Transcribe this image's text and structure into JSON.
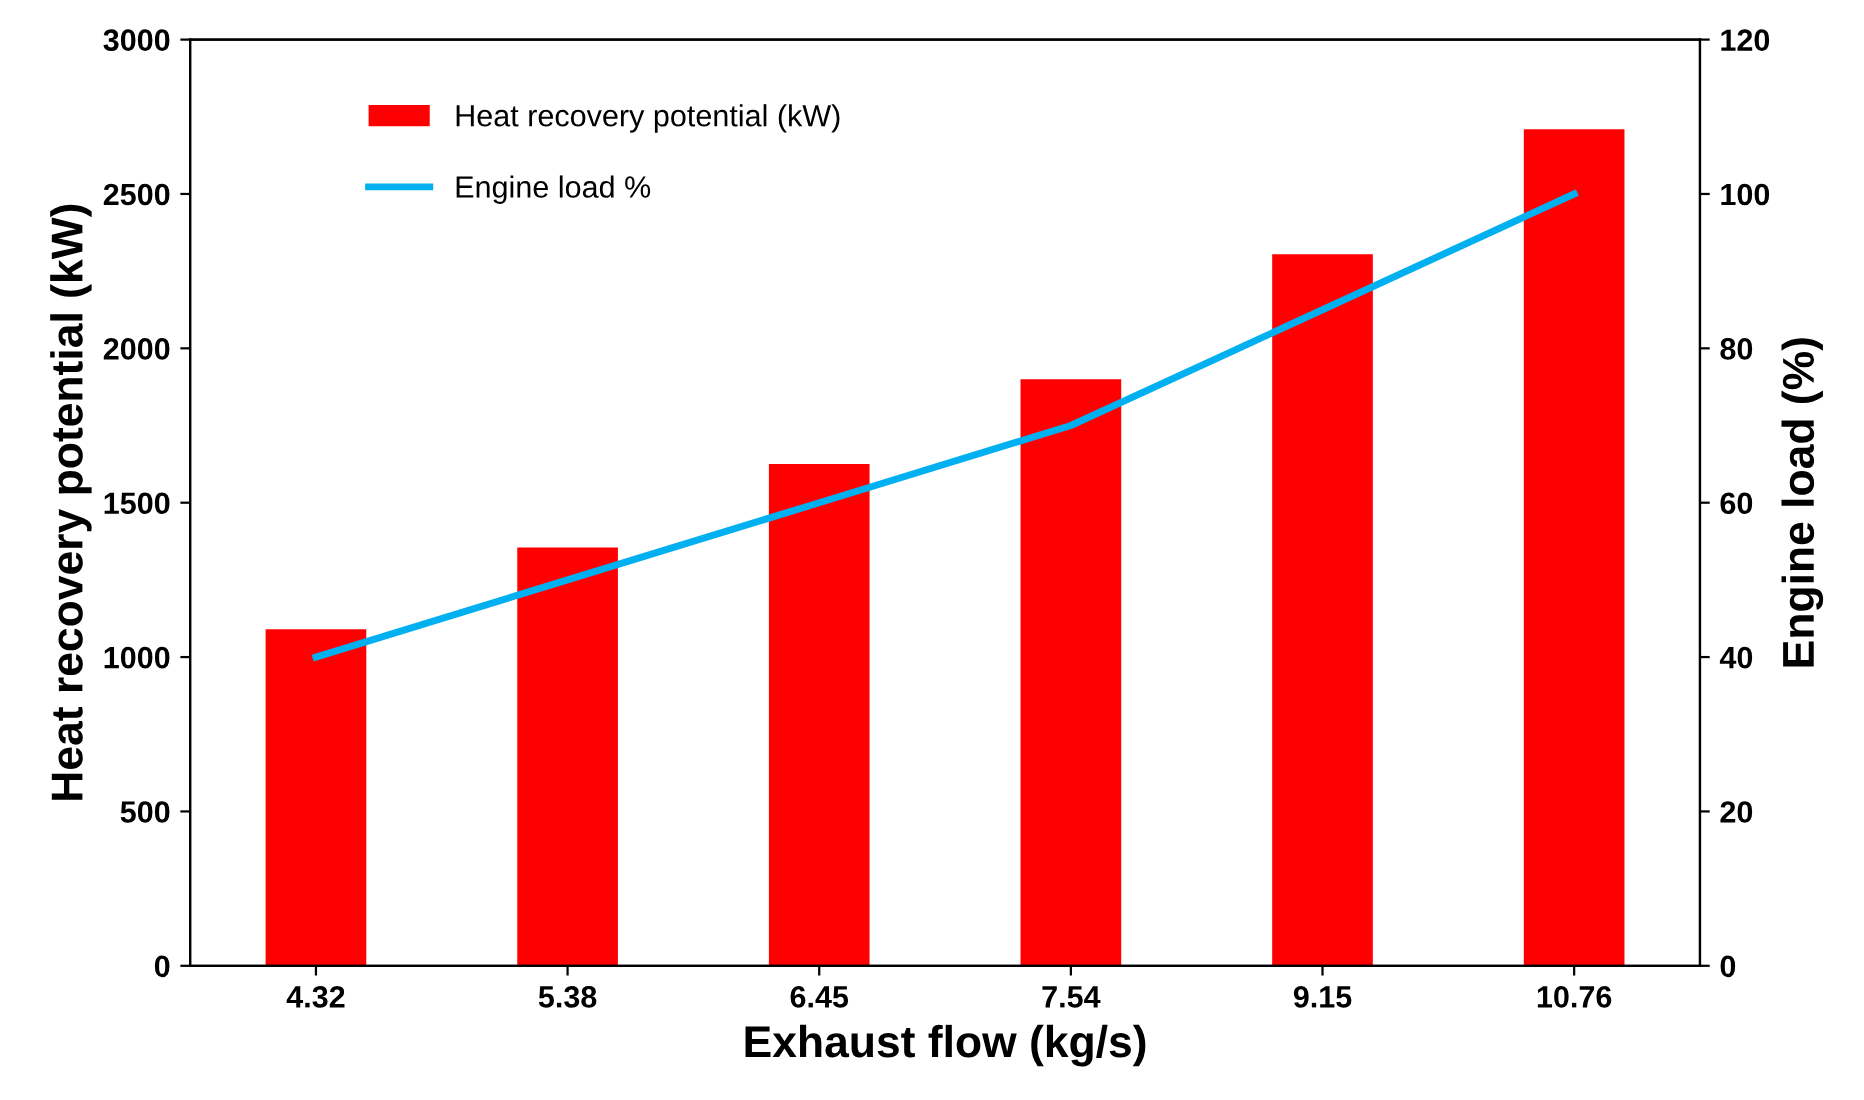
{
  "chart_data": {
    "type": "bar",
    "xlabel": "Exhaust flow (kg/s)",
    "ylabel": "Heat recovery potential (kW)",
    "y2label": "Engine load (%)",
    "categories": [
      "4.32",
      "5.38",
      "6.45",
      "7.54",
      "9.15",
      "10.76"
    ],
    "series": [
      {
        "name": "Heat recovery potential (kW)",
        "color": "#ff0000",
        "values": [
          1090,
          1355,
          1625,
          1900,
          2305,
          2710
        ]
      },
      {
        "name": "Engine load %",
        "type": "line",
        "color": "#00b0f0",
        "axis": "y2",
        "values": [
          40,
          50,
          60,
          70,
          85,
          100
        ]
      }
    ],
    "ylim": [
      0,
      3000
    ],
    "yticks": [
      0,
      500,
      1000,
      1500,
      2000,
      2500,
      3000
    ],
    "y2lim": [
      0,
      120
    ],
    "y2ticks": [
      0,
      20,
      40,
      60,
      80,
      100,
      120
    ],
    "grid": false,
    "legend": "top left",
    "marker": "none",
    "line_style": "solid"
  }
}
